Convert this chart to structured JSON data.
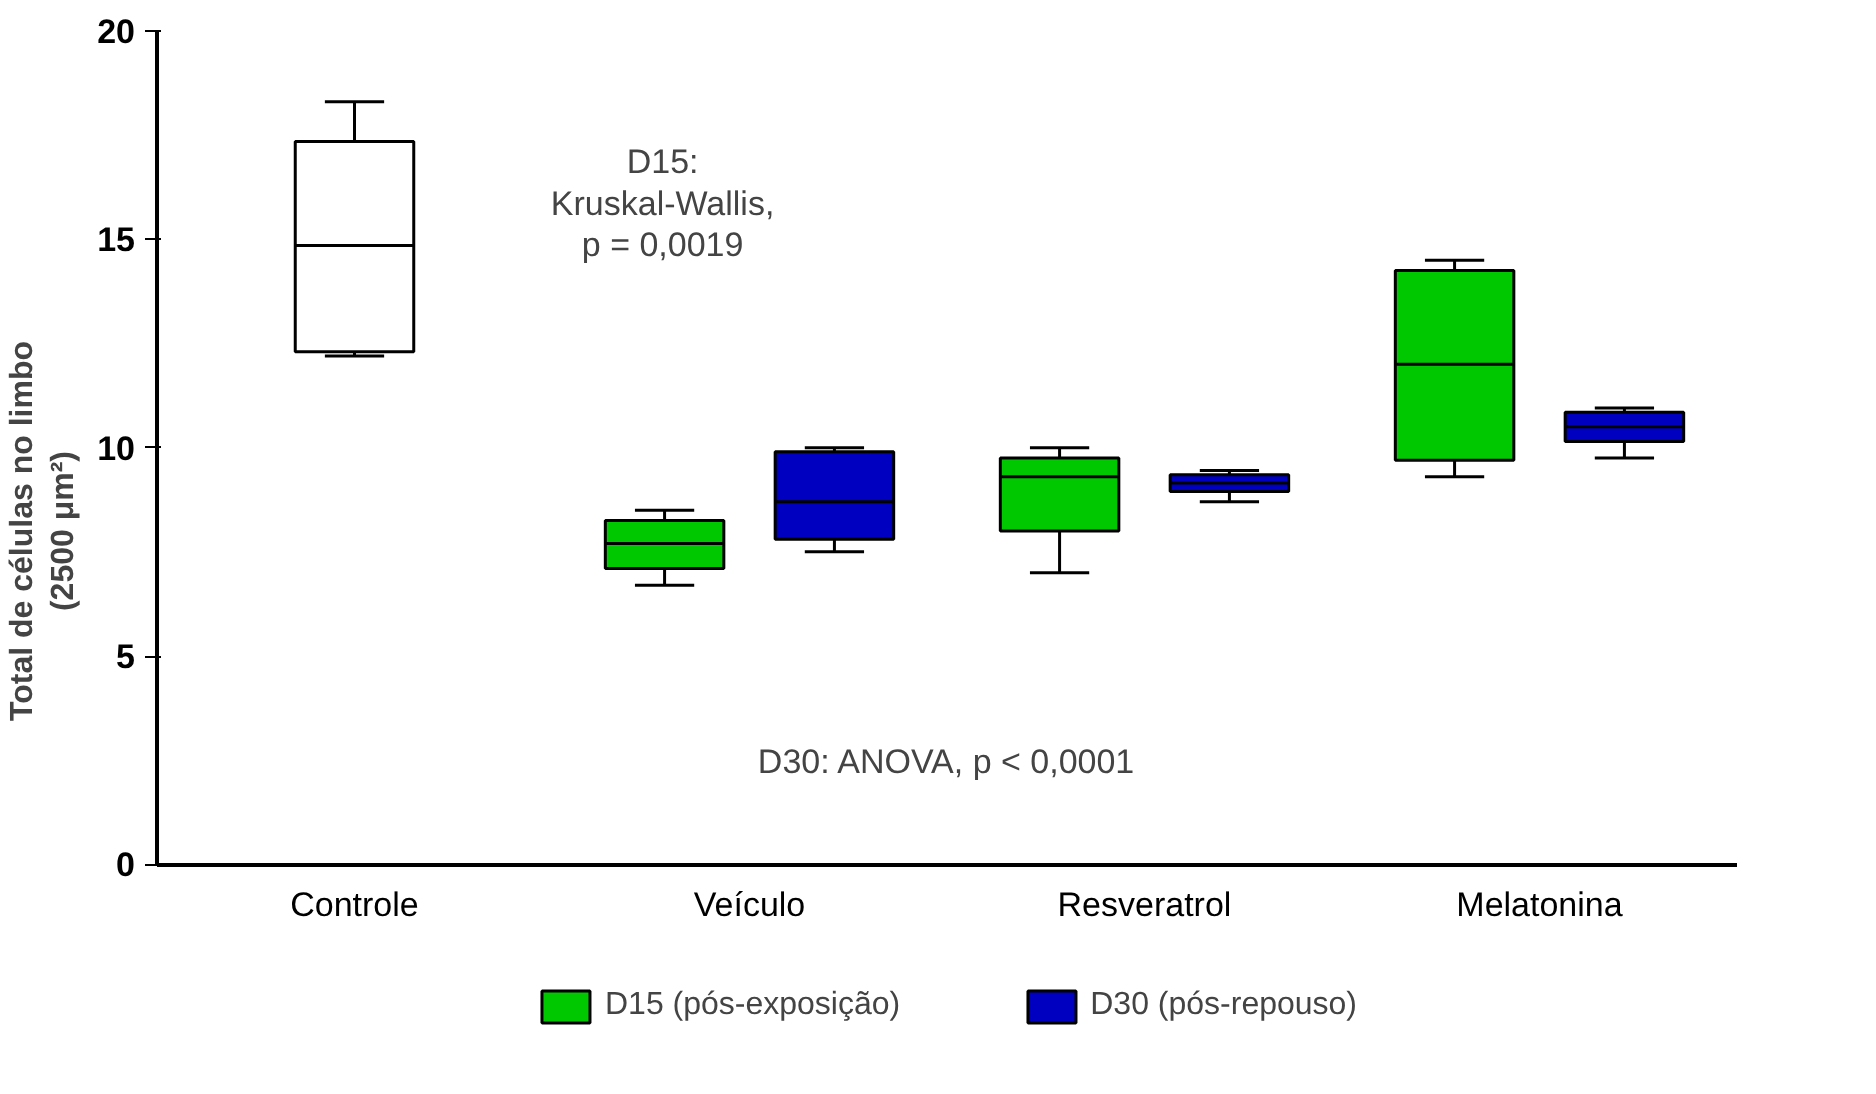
{
  "chart_data": {
    "type": "box",
    "ylabel": "Total de células no limbo\n(2500 μm²)",
    "categories": [
      "Controle",
      "Veículo",
      "Resveratrol",
      "Melatonina"
    ],
    "ylim": [
      0,
      20
    ],
    "yticks": [
      0,
      5,
      10,
      15,
      20
    ],
    "grid": false,
    "legend": "bottom",
    "annotations": [
      "D15:\nKruskal-Wallis,\np = 0,0019",
      "D30: ANOVA, p < 0,0001"
    ],
    "series": [
      {
        "color": "#ffffff",
        "boxes": [
          {
            "low": 12.2,
            "q1": 12.3,
            "median": 14.85,
            "q3": 17.35,
            "high": 18.3
          },
          null,
          null,
          null
        ]
      },
      {
        "name": "D15 (pós-exposição)",
        "color": "#00c800",
        "boxes": [
          null,
          {
            "low": 6.7,
            "q1": 7.1,
            "median": 7.7,
            "q3": 8.25,
            "high": 8.5
          },
          {
            "low": 7.0,
            "q1": 8.0,
            "median": 9.3,
            "q3": 9.75,
            "high": 10.0
          },
          {
            "low": 9.3,
            "q1": 9.7,
            "median": 12.0,
            "q3": 14.25,
            "high": 14.5
          }
        ]
      },
      {
        "name": "D30 (pós-repouso)",
        "color": "#0000c0",
        "boxes": [
          null,
          {
            "low": 7.5,
            "q1": 7.8,
            "median": 8.7,
            "q3": 9.9,
            "high": 10.0
          },
          {
            "low": 8.7,
            "q1": 8.95,
            "median": 9.15,
            "q3": 9.35,
            "high": 9.45
          },
          {
            "low": 9.75,
            "q1": 10.15,
            "median": 10.5,
            "q3": 10.85,
            "high": 10.95
          }
        ]
      }
    ]
  }
}
